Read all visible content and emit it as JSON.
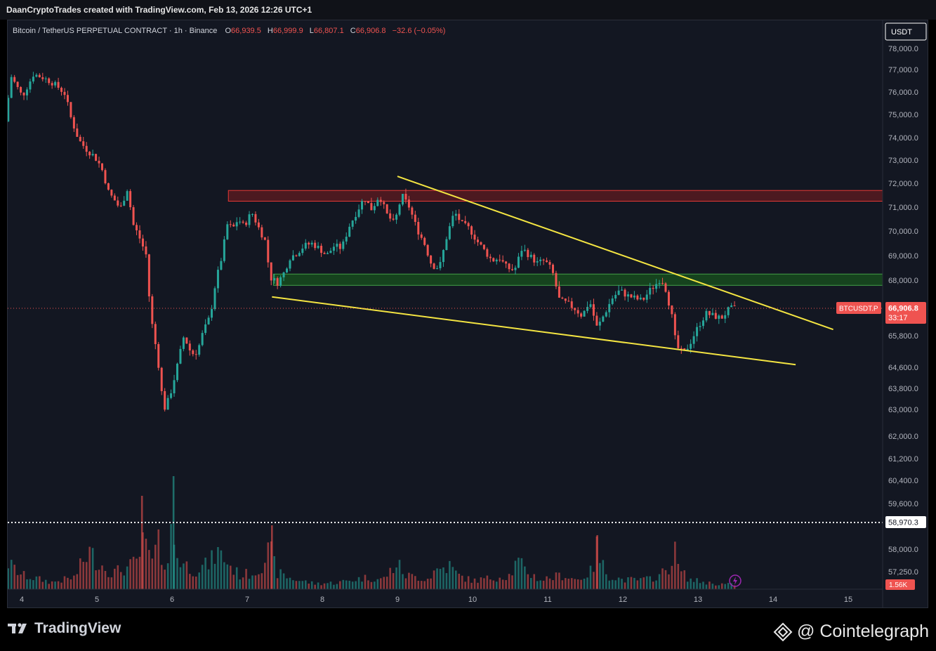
{
  "header": {
    "attribution": "DaanCryptoTrades created with TradingView.com, Feb 13, 2026 12:26 UTC+1"
  },
  "legend": {
    "symbol": "Bitcoin / TetherUS PERPETUAL CONTRACT · 1h · Binance",
    "o_label": "O",
    "o_value": "66,939.5",
    "h_label": "H",
    "h_value": "66,999.9",
    "l_label": "L",
    "l_value": "66,807.1",
    "c_label": "C",
    "c_value": "66,906.8",
    "change": "−32.6 (−0.05%)"
  },
  "price_axis": {
    "currency": "USDT",
    "ticks": [
      "78,000.0",
      "77,000.0",
      "76,000.0",
      "75,000.0",
      "74,000.0",
      "73,000.0",
      "72,000.0",
      "71,000.0",
      "70,000.0",
      "69,000.0",
      "68,000.0",
      "65,800.0",
      "64,600.0",
      "63,800.0",
      "63,000.0",
      "62,000.0",
      "61,200.0",
      "60,400.0",
      "59,600.0",
      "58,000.0",
      "57,250.0"
    ],
    "last_price_label": "66,906.8",
    "countdown_label": "33:17",
    "symbol_badge": "BTCUSDT.P",
    "dotted_level_label": "58,970.3",
    "volume_badge": "1.56K"
  },
  "time_axis": {
    "ticks": [
      "4",
      "5",
      "6",
      "7",
      "8",
      "9",
      "10",
      "11",
      "12",
      "13",
      "14",
      "15"
    ]
  },
  "footer": {
    "tradingview_brand": "TradingView",
    "cointelegraph_brand": "@ Cointelegraph"
  },
  "colors": {
    "up": "#26a69a",
    "down": "#ef5350",
    "trendline": "#f4e542",
    "resistance_zone": "#b71c1c",
    "support_zone": "#1b7a1b",
    "background": "#131722"
  },
  "chart_data": {
    "type": "candlestick",
    "title": "Bitcoin / TetherUS PERPETUAL CONTRACT · 1h · Binance",
    "x_domain": [
      3.8,
      15.5
    ],
    "x_ticks": [
      4,
      5,
      6,
      7,
      8,
      9,
      10,
      11,
      12,
      13,
      14,
      15
    ],
    "y_scale": "irregular (as printed on price axis)",
    "last_price": 66906.8,
    "dotted_level": 58970.3,
    "resistance_zone": {
      "x_range": [
        6.75,
        15.5
      ],
      "price_range": [
        71250,
        71700
      ]
    },
    "support_zone": {
      "x_range": [
        7.35,
        15.5
      ],
      "price_range": [
        67800,
        68250
      ]
    },
    "trendlines": [
      {
        "name": "upper",
        "start": {
          "x": 9.0,
          "price": 72300
        },
        "end": {
          "x": 14.8,
          "price": 66050
        }
      },
      {
        "name": "lower",
        "start": {
          "x": 7.33,
          "price": 67350
        },
        "end": {
          "x": 14.3,
          "price": 64700
        }
      }
    ],
    "price_path": [
      [
        3.82,
        74700
      ],
      [
        3.9,
        76700
      ],
      [
        4.05,
        75800
      ],
      [
        4.2,
        76800
      ],
      [
        4.35,
        76600
      ],
      [
        4.5,
        76300
      ],
      [
        4.62,
        75900
      ],
      [
        4.7,
        74800
      ],
      [
        4.8,
        73900
      ],
      [
        4.92,
        73400
      ],
      [
        5.0,
        73200
      ],
      [
        5.1,
        72700
      ],
      [
        5.2,
        71600
      ],
      [
        5.3,
        71200
      ],
      [
        5.35,
        70900
      ],
      [
        5.45,
        71800
      ],
      [
        5.52,
        70300
      ],
      [
        5.6,
        69800
      ],
      [
        5.7,
        69000
      ],
      [
        5.75,
        66800
      ],
      [
        5.8,
        65800
      ],
      [
        5.85,
        65000
      ],
      [
        5.9,
        63700
      ],
      [
        5.95,
        63000
      ],
      [
        6.02,
        63600
      ],
      [
        6.1,
        64500
      ],
      [
        6.2,
        65800
      ],
      [
        6.3,
        65100
      ],
      [
        6.38,
        65200
      ],
      [
        6.45,
        65900
      ],
      [
        6.55,
        66600
      ],
      [
        6.62,
        67900
      ],
      [
        6.7,
        68900
      ],
      [
        6.78,
        70300
      ],
      [
        6.85,
        70100
      ],
      [
        6.92,
        70500
      ],
      [
        7.0,
        70200
      ],
      [
        7.1,
        70800
      ],
      [
        7.2,
        70100
      ],
      [
        7.28,
        69600
      ],
      [
        7.35,
        68100
      ],
      [
        7.45,
        67900
      ],
      [
        7.55,
        68400
      ],
      [
        7.6,
        68900
      ],
      [
        7.7,
        69100
      ],
      [
        7.8,
        69400
      ],
      [
        7.9,
        69500
      ],
      [
        8.0,
        69300
      ],
      [
        8.1,
        69000
      ],
      [
        8.2,
        69400
      ],
      [
        8.3,
        69300
      ],
      [
        8.4,
        70200
      ],
      [
        8.5,
        70800
      ],
      [
        8.6,
        71400
      ],
      [
        8.7,
        70900
      ],
      [
        8.8,
        71500
      ],
      [
        8.9,
        70700
      ],
      [
        9.0,
        70300
      ],
      [
        9.1,
        71500
      ],
      [
        9.2,
        71000
      ],
      [
        9.3,
        70100
      ],
      [
        9.4,
        69500
      ],
      [
        9.5,
        68600
      ],
      [
        9.6,
        68500
      ],
      [
        9.7,
        69800
      ],
      [
        9.8,
        70800
      ],
      [
        9.9,
        70300
      ],
      [
        10.0,
        70100
      ],
      [
        10.1,
        69600
      ],
      [
        10.2,
        69200
      ],
      [
        10.3,
        68800
      ],
      [
        10.4,
        68900
      ],
      [
        10.5,
        68500
      ],
      [
        10.6,
        68400
      ],
      [
        10.7,
        69300
      ],
      [
        10.8,
        69000
      ],
      [
        10.9,
        68700
      ],
      [
        11.0,
        68800
      ],
      [
        11.1,
        68400
      ],
      [
        11.2,
        67200
      ],
      [
        11.3,
        67100
      ],
      [
        11.4,
        66900
      ],
      [
        11.5,
        66600
      ],
      [
        11.6,
        67200
      ],
      [
        11.7,
        66100
      ],
      [
        11.8,
        66700
      ],
      [
        11.9,
        67300
      ],
      [
        12.0,
        67600
      ],
      [
        12.1,
        67400
      ],
      [
        12.2,
        67300
      ],
      [
        12.3,
        67200
      ],
      [
        12.4,
        67600
      ],
      [
        12.5,
        67900
      ],
      [
        12.55,
        68100
      ],
      [
        12.62,
        67600
      ],
      [
        12.7,
        66500
      ],
      [
        12.75,
        65400
      ],
      [
        12.85,
        65100
      ],
      [
        12.95,
        65600
      ],
      [
        13.05,
        66200
      ],
      [
        13.15,
        66700
      ],
      [
        13.25,
        66600
      ],
      [
        13.35,
        66500
      ],
      [
        13.45,
        66850
      ],
      [
        13.5,
        66906
      ]
    ],
    "volume_path": [
      [
        3.82,
        0.55
      ],
      [
        4.0,
        0.3
      ],
      [
        4.4,
        0.15
      ],
      [
        4.7,
        0.25
      ],
      [
        4.8,
        0.55
      ],
      [
        4.9,
        0.8
      ],
      [
        5.0,
        0.6
      ],
      [
        5.2,
        0.35
      ],
      [
        5.4,
        0.45
      ],
      [
        5.55,
        0.6
      ],
      [
        5.6,
        0.95
      ],
      [
        5.7,
        0.8
      ],
      [
        5.75,
        0.45
      ],
      [
        5.8,
        1.1
      ],
      [
        5.85,
        0.7
      ],
      [
        5.95,
        0.6
      ],
      [
        6.0,
        1.4
      ],
      [
        6.05,
        0.75
      ],
      [
        6.15,
        0.55
      ],
      [
        6.3,
        0.4
      ],
      [
        6.5,
        0.55
      ],
      [
        6.6,
        0.8
      ],
      [
        6.7,
        0.65
      ],
      [
        6.8,
        0.45
      ],
      [
        6.9,
        0.3
      ],
      [
        7.1,
        0.35
      ],
      [
        7.2,
        0.55
      ],
      [
        7.3,
        0.85
      ],
      [
        7.4,
        0.35
      ],
      [
        7.6,
        0.22
      ],
      [
        7.9,
        0.12
      ],
      [
        8.2,
        0.14
      ],
      [
        8.4,
        0.2
      ],
      [
        8.6,
        0.25
      ],
      [
        8.8,
        0.2
      ],
      [
        9.0,
        0.55
      ],
      [
        9.1,
        0.3
      ],
      [
        9.4,
        0.22
      ],
      [
        9.5,
        0.4
      ],
      [
        9.7,
        0.5
      ],
      [
        9.8,
        0.3
      ],
      [
        10.0,
        0.18
      ],
      [
        10.3,
        0.25
      ],
      [
        10.5,
        0.3
      ],
      [
        10.6,
        0.6
      ],
      [
        10.7,
        0.4
      ],
      [
        10.9,
        0.2
      ],
      [
        11.2,
        0.3
      ],
      [
        11.4,
        0.2
      ],
      [
        11.6,
        0.4
      ],
      [
        11.65,
        0.9
      ],
      [
        11.7,
        0.6
      ],
      [
        11.8,
        0.3
      ],
      [
        12.0,
        0.2
      ],
      [
        12.3,
        0.2
      ],
      [
        12.5,
        0.3
      ],
      [
        12.6,
        0.45
      ],
      [
        12.7,
        0.8
      ],
      [
        12.75,
        0.4
      ],
      [
        12.9,
        0.2
      ],
      [
        13.2,
        0.12
      ],
      [
        13.45,
        0.1
      ]
    ]
  }
}
